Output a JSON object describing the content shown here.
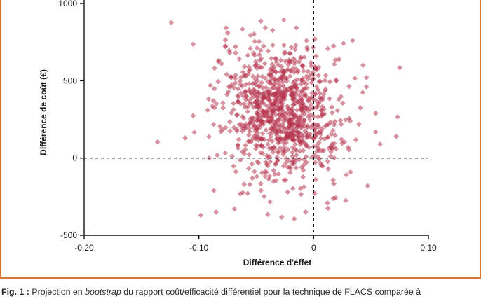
{
  "chart_data": {
    "type": "scatter",
    "xlabel": "Différence d'effet",
    "ylabel": "Différence de coût (€)",
    "xlim": [
      -0.2,
      0.1
    ],
    "ylim": [
      -500,
      1000
    ],
    "x_ticks": [
      "-0,20",
      "-0,10",
      "0",
      "0,10"
    ],
    "x_tick_values": [
      -0.2,
      -0.1,
      0,
      0.1
    ],
    "y_ticks": [
      "-500",
      "0",
      "500",
      "1000"
    ],
    "y_tick_values": [
      -500,
      0,
      500,
      1000
    ],
    "reference_lines": {
      "x": 0,
      "y": 0,
      "style": "dashed"
    },
    "marker": "diamond",
    "marker_color": "#b7344f",
    "grid": false,
    "n_points_approx": 1000,
    "points": [
      [
        -0.124,
        877
      ],
      [
        -0.136,
        104
      ],
      [
        -0.026,
        894
      ],
      [
        -0.046,
        886
      ],
      [
        0.075,
        584
      ],
      [
        0.072,
        140
      ],
      [
        -0.105,
        736
      ],
      [
        -0.105,
        274
      ],
      [
        -0.104,
        166
      ],
      [
        -0.112,
        130
      ],
      [
        -0.091,
        0
      ],
      [
        -0.087,
        -210
      ],
      [
        -0.085,
        -350
      ],
      [
        -0.069,
        -330
      ],
      [
        -0.064,
        -232
      ],
      [
        -0.04,
        -365
      ],
      [
        -0.017,
        -394
      ],
      [
        -0.007,
        -349
      ],
      [
        0.012,
        -291
      ],
      [
        0.028,
        -275
      ],
      [
        0.047,
        -180
      ],
      [
        0.046,
        460
      ],
      [
        0.046,
        520
      ],
      [
        0.054,
        290
      ],
      [
        0.058,
        90
      ],
      [
        0.034,
        760
      ],
      [
        0.001,
        769
      ],
      [
        -0.055,
        794
      ],
      [
        0.026,
        742
      ],
      [
        0.043,
        600
      ]
    ]
  },
  "caption": {
    "label": "Fig. 1 :",
    "text_before": " Projection en ",
    "emphasis": "bootstrap",
    "text_after": " du rapport coût/efficacité différentiel pour la technique de FLACS comparée à"
  }
}
